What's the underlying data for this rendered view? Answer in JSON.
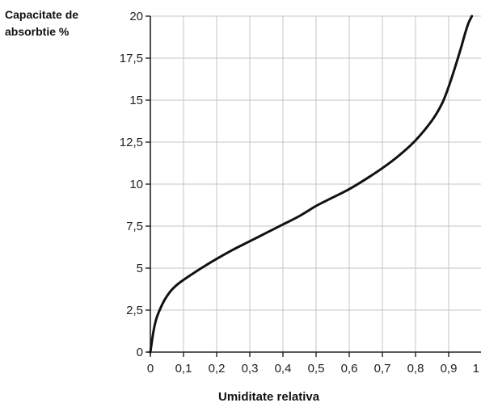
{
  "chart_data": {
    "type": "line",
    "title": "",
    "ylabel_lines": [
      "Capacitate de",
      "absorbtie %"
    ],
    "xlabel": "Umiditate relativa",
    "xlim": [
      0,
      1
    ],
    "ylim": [
      0,
      20
    ],
    "x_ticks": [
      0,
      0.1,
      0.2,
      0.3,
      0.4,
      0.5,
      0.6,
      0.7,
      0.8,
      0.9,
      1
    ],
    "x_tick_labels": [
      "0",
      "0,1",
      "0,2",
      "0,3",
      "0,4",
      "0,5",
      "0,6",
      "0,7",
      "0,8",
      "0,9",
      "1"
    ],
    "y_ticks": [
      0,
      2.5,
      5,
      7.5,
      10,
      12.5,
      15,
      17.5,
      20
    ],
    "y_tick_labels": [
      "0",
      "2,5",
      "5",
      "7,5",
      "10",
      "12,5",
      "15",
      "17,5",
      "20"
    ],
    "grid": true,
    "series": [
      {
        "color": "#111111",
        "x": [
          0,
          0.01,
          0.02,
          0.04,
          0.06,
          0.08,
          0.1,
          0.15,
          0.2,
          0.25,
          0.3,
          0.35,
          0.4,
          0.45,
          0.5,
          0.55,
          0.6,
          0.65,
          0.7,
          0.75,
          0.8,
          0.85,
          0.88,
          0.9,
          0.92,
          0.94,
          0.95,
          0.96,
          0.97
        ],
        "y": [
          0,
          1.3,
          2.1,
          3.0,
          3.6,
          4.0,
          4.3,
          4.95,
          5.55,
          6.1,
          6.6,
          7.1,
          7.6,
          8.1,
          8.7,
          9.2,
          9.7,
          10.3,
          10.95,
          11.7,
          12.6,
          13.8,
          14.8,
          15.8,
          17.0,
          18.3,
          19.0,
          19.6,
          20.0
        ]
      }
    ]
  }
}
